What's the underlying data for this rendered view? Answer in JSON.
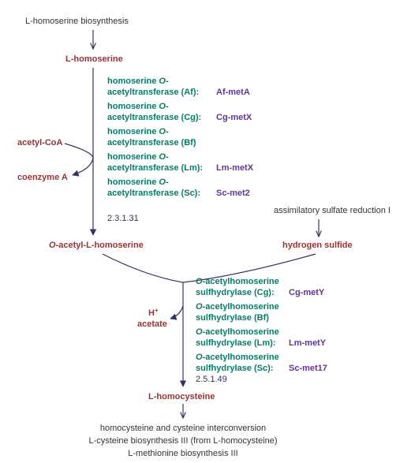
{
  "colors": {
    "metabolite": "#993333",
    "enzyme": "#008066",
    "gene": "#663399",
    "ec": "#333366",
    "plain": "#333333",
    "arrow": "#333366",
    "background": "#ffffff"
  },
  "fonts": {
    "metabolite_size": 11,
    "metabolite_weight": "bold",
    "enzyme_size": 11,
    "enzyme_weight": "bold",
    "enzyme_style": "normal",
    "gene_size": 11,
    "gene_weight": "bold",
    "ec_size": 11,
    "ec_weight": "normal",
    "plain_size": 11,
    "plain_weight": "normal"
  },
  "header": {
    "top_pathway": "L-homoserine biosynthesis"
  },
  "metabolites": {
    "l_homoserine": "L-homoserine",
    "acetyl_coa": "acetyl-CoA",
    "coenzyme_a": "coenzyme A",
    "o_acetyl_l_homoserine": "O-acetyl-L-homoserine",
    "hydrogen_sulfide": "hydrogen sulfide",
    "h_plus": "H",
    "h_plus_sup": "+",
    "acetate": "acetate",
    "l_homocysteine": "L-homocysteine",
    "o_prefix": "O"
  },
  "side_pathway": {
    "assim": "assimilatory sulfate reduction I"
  },
  "reaction1": {
    "enzymes": [
      {
        "name1": "homoserine ",
        "name2": "-",
        "name3": "acetyltransferase (Af):",
        "gene": "Af-metA"
      },
      {
        "name1": "homoserine ",
        "name2": "-",
        "name3": "acetyltransferase (Cg):",
        "gene": "Cg-metX"
      },
      {
        "name1": "homoserine ",
        "name2": "-",
        "name3": "acetyltransferase (Bf)",
        "gene": ""
      },
      {
        "name1": "homoserine ",
        "name2": "-",
        "name3": "acetyltransferase (Lm):",
        "gene": "Lm-metX"
      },
      {
        "name1": "homoserine ",
        "name2": "-",
        "name3": "acetyltransferase (Sc):",
        "gene": "Sc-met2"
      }
    ],
    "ec": "2.3.1.31"
  },
  "reaction2": {
    "enzymes": [
      {
        "name1": "-acetylhomoserine",
        "name2": "sulfhydrylase (Cg):",
        "gene": "Cg-metY"
      },
      {
        "name1": "-acetylhomoserine",
        "name2": "sulfhydrylase (Bf)",
        "gene": ""
      },
      {
        "name1": "-acetylhomoserine",
        "name2": "sulfhydrylase (Lm):",
        "gene": "Lm-metY"
      },
      {
        "name1": "-acetylhomoserine",
        "name2": "sulfhydrylase (Sc):",
        "gene": "Sc-met17"
      }
    ],
    "ec": "2.5.1.49"
  },
  "footer": {
    "line1": "homocysteine and cysteine interconversion",
    "line2": "L-cysteine biosynthesis III (from L-homocysteine)",
    "line3": "L-methionine biosynthesis III"
  }
}
